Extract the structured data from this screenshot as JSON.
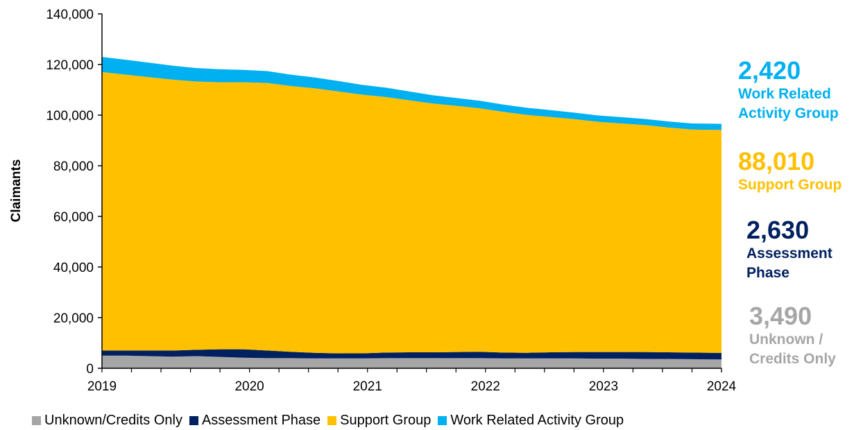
{
  "chart_data": {
    "type": "area",
    "stacked": true,
    "ylabel": "Claimants",
    "ylim": [
      0,
      140000
    ],
    "y_ticks": [
      "0",
      "20,000",
      "40,000",
      "60,000",
      "80,000",
      "100,000",
      "120,000",
      "140,000"
    ],
    "x_tick_labels": [
      "2019",
      "2020",
      "2021",
      "2022",
      "2023",
      "2024"
    ],
    "x_start_label": "2019",
    "grid": false,
    "legend_position": "bottom",
    "x": [
      0,
      0.2,
      0.4,
      0.6,
      0.8,
      1.0,
      1.2,
      1.4,
      1.6,
      1.8,
      2.0,
      2.2,
      2.4,
      2.6,
      2.8,
      3.0,
      3.2,
      3.4,
      3.6,
      3.8,
      4.0,
      4.2,
      4.4,
      4.6,
      4.8,
      5.0,
      5.2,
      5.25
    ],
    "series": [
      {
        "name": "Unknown/Credits Only",
        "color": "#a6a6a6",
        "values": [
          5000,
          5000,
          4800,
          4600,
          4800,
          4500,
          4200,
          4000,
          4000,
          3900,
          3900,
          3900,
          4000,
          4000,
          4000,
          4000,
          4000,
          3900,
          3900,
          3900,
          3900,
          3800,
          3800,
          3700,
          3700,
          3600,
          3500,
          3490
        ]
      },
      {
        "name": "Assessment Phase",
        "color": "#002060",
        "values": [
          2000,
          2000,
          2200,
          2400,
          2500,
          3000,
          3300,
          3000,
          2500,
          2200,
          2000,
          2000,
          2200,
          2300,
          2300,
          2400,
          2500,
          2300,
          2200,
          2400,
          2500,
          2600,
          2600,
          2700,
          2600,
          2600,
          2620,
          2630
        ]
      },
      {
        "name": "Support Group",
        "color": "#ffc000",
        "values": [
          110000,
          109000,
          108000,
          107000,
          106000,
          105500,
          105500,
          105700,
          105000,
          104500,
          103500,
          102200,
          101000,
          99600,
          98300,
          97300,
          96200,
          95100,
          94000,
          93000,
          92000,
          91000,
          90300,
          89700,
          88800,
          88100,
          88050,
          88010
        ]
      },
      {
        "name": "Work Related Activity Group",
        "color": "#00b0f0",
        "values": [
          6000,
          5900,
          5700,
          5500,
          5300,
          5100,
          4900,
          4700,
          4500,
          4300,
          4100,
          3900,
          3700,
          3500,
          3300,
          3100,
          3000,
          2900,
          2800,
          2700,
          2600,
          2500,
          2500,
          2400,
          2400,
          2400,
          2420,
          2420
        ]
      }
    ]
  },
  "annotations": [
    {
      "value": "2,420",
      "label_lines": [
        "Work Related",
        "Activity Group"
      ],
      "color": "#00b0f0"
    },
    {
      "value": "88,010",
      "label_lines": [
        "Support Group"
      ],
      "color": "#ffc000"
    },
    {
      "value": "2,630",
      "label_lines": [
        "Assessment",
        "Phase"
      ],
      "color": "#002060"
    },
    {
      "value": "3,490",
      "label_lines": [
        "Unknown /",
        "Credits Only"
      ],
      "color": "#a6a6a6"
    }
  ]
}
